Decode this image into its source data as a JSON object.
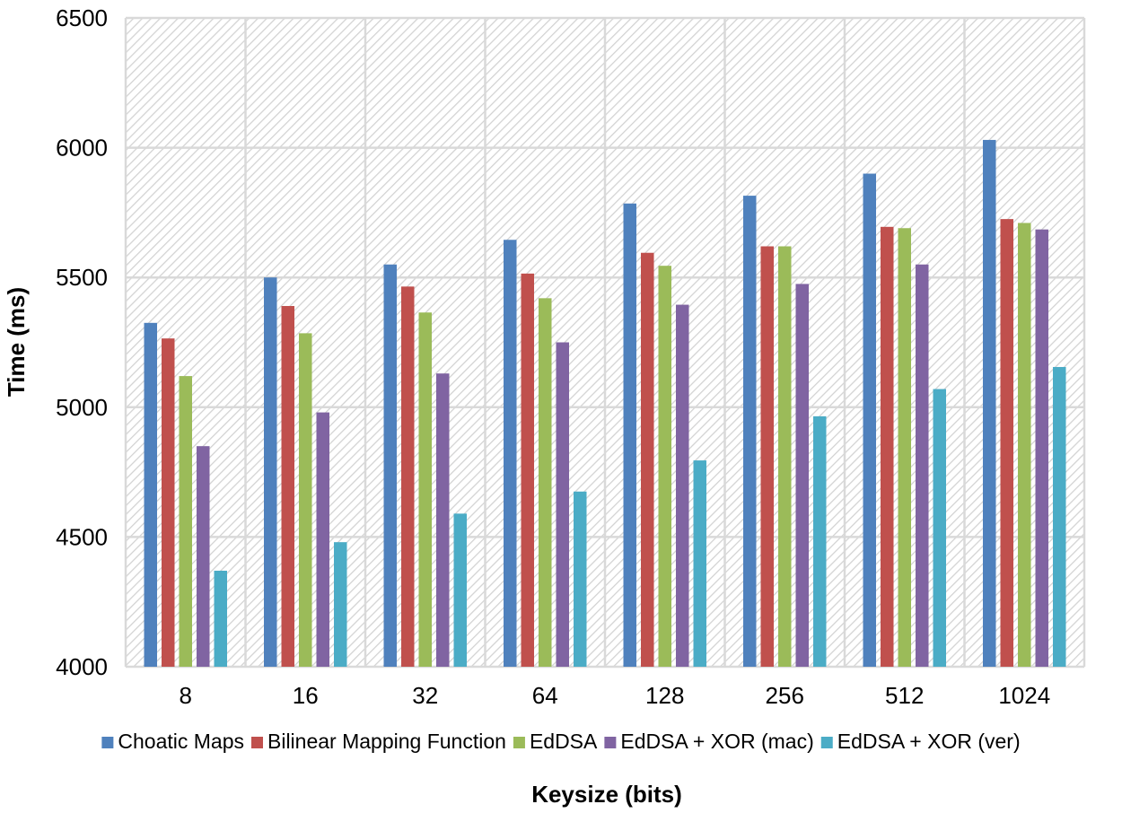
{
  "chart_data": {
    "type": "bar",
    "title": "",
    "xlabel": "Keysize (bits)",
    "ylabel": "Time (ms)",
    "ylim": [
      4000,
      6500
    ],
    "yticks": [
      4000,
      4500,
      5000,
      5500,
      6000,
      6500
    ],
    "categories": [
      "8",
      "16",
      "32",
      "64",
      "128",
      "256",
      "512",
      "1024"
    ],
    "legend_position": "bottom",
    "grid": true,
    "series": [
      {
        "name": "Choatic Maps",
        "color": "#4f81bd",
        "values": [
          5325,
          5500,
          5550,
          5645,
          5785,
          5815,
          5900,
          6030
        ]
      },
      {
        "name": "Bilinear Mapping Function",
        "color": "#c0504d",
        "values": [
          5265,
          5390,
          5465,
          5515,
          5595,
          5620,
          5695,
          5725
        ]
      },
      {
        "name": "EdDSA",
        "color": "#9bbb59",
        "values": [
          5120,
          5285,
          5365,
          5420,
          5545,
          5620,
          5690,
          5710
        ]
      },
      {
        "name": "EdDSA + XOR (mac)",
        "color": "#8064a2",
        "values": [
          4850,
          4980,
          5130,
          5250,
          5395,
          5475,
          5550,
          5685
        ]
      },
      {
        "name": "EdDSA + XOR (ver)",
        "color": "#4bacc6",
        "values": [
          4370,
          4480,
          4590,
          4675,
          4795,
          4965,
          5070,
          5155
        ]
      }
    ]
  }
}
